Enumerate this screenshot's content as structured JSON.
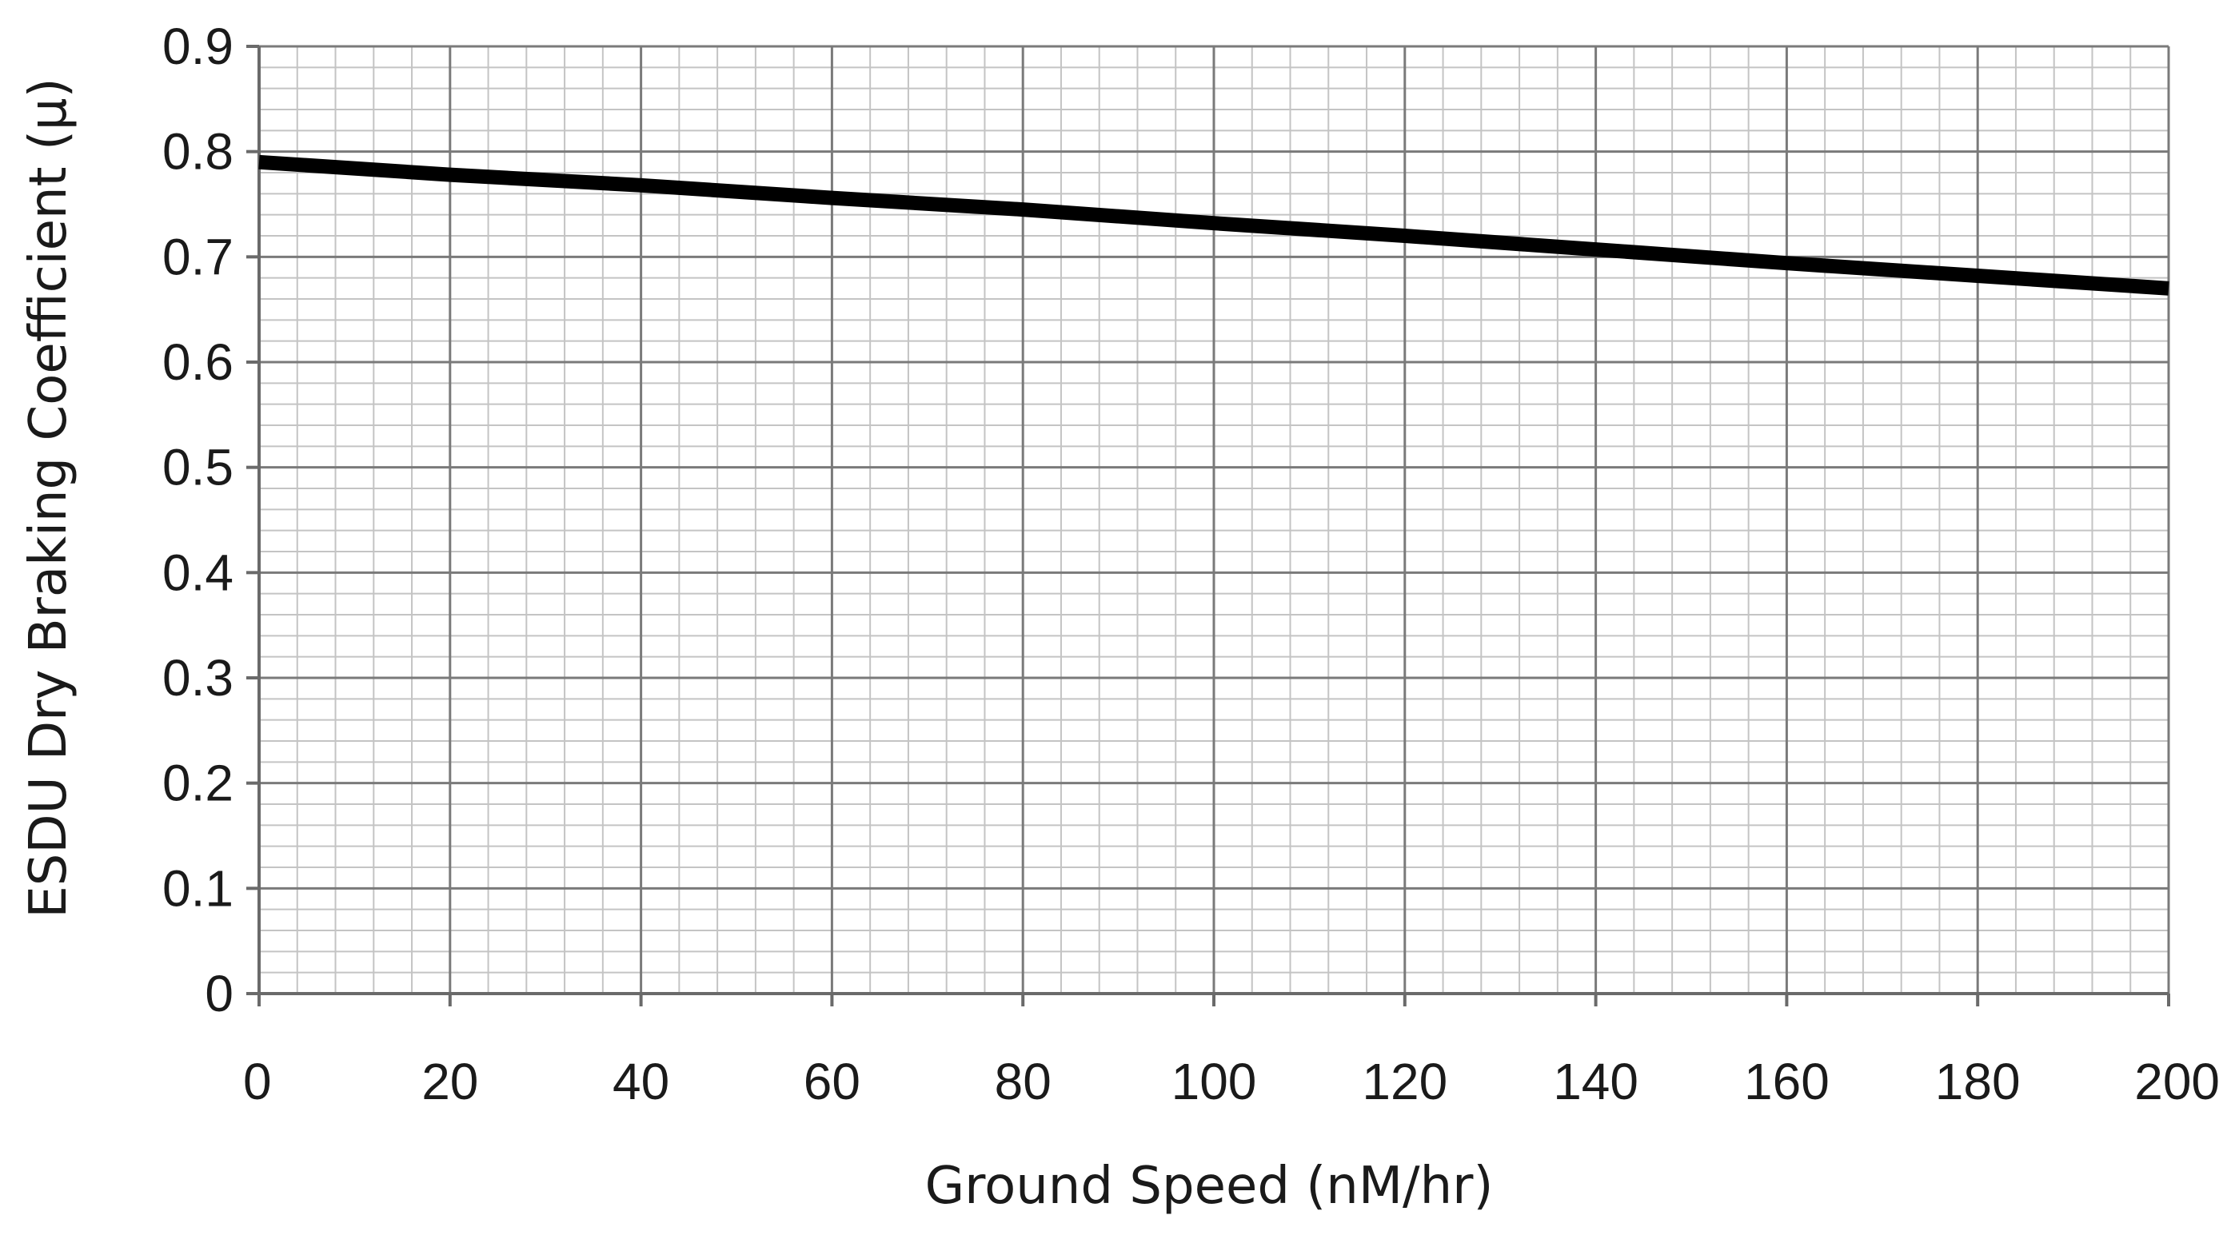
{
  "chart_data": {
    "type": "line",
    "title": "",
    "xlabel": "Ground Speed (nM/hr)",
    "ylabel": "ESDU Dry Braking Coefficient (μ)",
    "xlim": [
      0,
      200
    ],
    "ylim": [
      0,
      0.9
    ],
    "x_ticks": [
      "0",
      "20",
      "40",
      "60",
      "80",
      "100",
      "120",
      "140",
      "160",
      "180",
      "200"
    ],
    "y_ticks": [
      "0",
      "0.1",
      "0.2",
      "0.3",
      "0.4",
      "0.5",
      "0.6",
      "0.7",
      "0.8",
      "0.9"
    ],
    "x_minor_step": 4,
    "y_minor_step": 0.02,
    "grid": true,
    "legend": "none",
    "series": [
      {
        "color": "#000000",
        "x": [
          0,
          20,
          40,
          60,
          80,
          100,
          120,
          140,
          160,
          180,
          200
        ],
        "y": [
          0.79,
          0.778,
          0.768,
          0.756,
          0.745,
          0.732,
          0.72,
          0.707,
          0.694,
          0.682,
          0.67
        ]
      }
    ]
  }
}
